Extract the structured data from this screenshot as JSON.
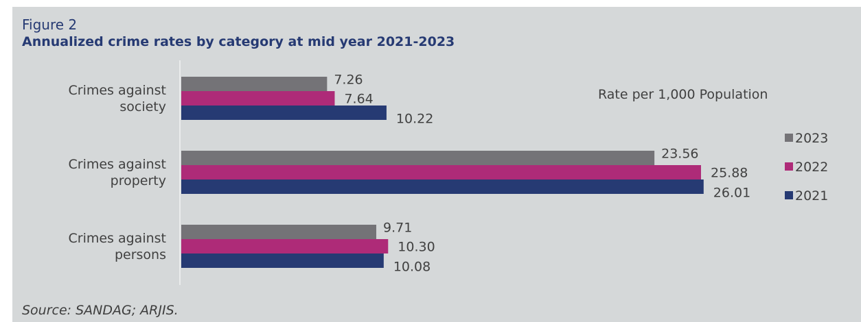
{
  "figure_label": "Figure 2",
  "title": "Annualized crime rates by category at mid year 2021-2023",
  "source": "Source: SANDAG; ARJIS.",
  "chart_data": {
    "type": "bar",
    "orientation": "horizontal",
    "annotation": "Rate per 1,000 Population",
    "categories": [
      "Crimes against society",
      "Crimes against property",
      "Crimes against persons"
    ],
    "category_lines": [
      [
        "Crimes against",
        "society"
      ],
      [
        "Crimes against",
        "property"
      ],
      [
        "Crimes against",
        "persons"
      ]
    ],
    "series": [
      {
        "name": "2023",
        "color": "#747377",
        "values": [
          7.26,
          23.56,
          9.71
        ],
        "labels": [
          "7.26",
          "23.56",
          "9.71"
        ]
      },
      {
        "name": "2022",
        "color": "#ae2b78",
        "values": [
          7.64,
          25.88,
          10.3
        ],
        "labels": [
          "7.64",
          "25.88",
          "10.30"
        ]
      },
      {
        "name": "2021",
        "color": "#263a73",
        "values": [
          10.22,
          26.01,
          10.08
        ],
        "labels": [
          "10.22",
          "26.01",
          "10.08"
        ]
      }
    ],
    "xlim": [
      0,
      28
    ],
    "grid": false,
    "legend": "right",
    "data_labels": true
  }
}
